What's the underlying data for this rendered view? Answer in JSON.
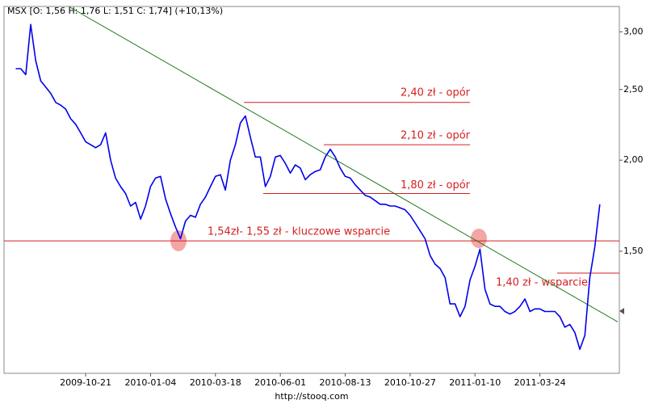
{
  "chart_data": {
    "type": "line",
    "title": "MSX [O: 1,56  H: 1,76  L: 1,51  C: 1,74] (+10,13%)",
    "footer": "http://stooq.com",
    "log_scale": true,
    "categories": [
      null,
      null,
      null,
      null,
      null,
      null,
      null,
      null,
      null,
      null,
      null,
      null,
      null,
      null,
      "2009-10-21",
      null,
      null,
      null,
      null,
      null,
      null,
      null,
      null,
      null,
      null,
      null,
      null,
      "2010-01-04",
      null,
      null,
      null,
      null,
      null,
      null,
      null,
      null,
      null,
      null,
      null,
      null,
      "2010-03-18",
      null,
      null,
      null,
      null,
      null,
      null,
      null,
      null,
      null,
      null,
      null,
      null,
      "2010-06-01",
      null,
      null,
      null,
      null,
      null,
      null,
      null,
      null,
      null,
      null,
      null,
      null,
      "2010-08-13",
      null,
      null,
      null,
      null,
      null,
      null,
      null,
      null,
      null,
      null,
      null,
      null,
      "2010-10-27",
      null,
      null,
      null,
      null,
      null,
      null,
      null,
      null,
      null,
      null,
      null,
      null,
      "2011-01-10",
      null,
      null,
      null,
      null,
      null,
      null,
      null,
      null,
      null,
      null,
      null,
      null,
      "2011-03-24",
      null,
      null,
      null,
      null,
      null,
      null,
      null,
      null,
      null,
      null,
      null,
      null
    ],
    "series": [
      {
        "name": "MSX",
        "color": "#0000ee",
        "values": [
          2.67,
          2.67,
          2.62,
          3.07,
          2.74,
          2.57,
          2.52,
          2.47,
          2.4,
          2.38,
          2.35,
          2.28,
          2.24,
          2.18,
          2.12,
          2.1,
          2.08,
          2.1,
          2.18,
          2.0,
          1.89,
          1.84,
          1.8,
          1.73,
          1.75,
          1.66,
          1.73,
          1.84,
          1.89,
          1.9,
          1.77,
          1.69,
          1.62,
          1.56,
          1.65,
          1.68,
          1.67,
          1.74,
          1.78,
          1.84,
          1.9,
          1.91,
          1.82,
          2.0,
          2.1,
          2.25,
          2.3,
          2.15,
          2.02,
          2.02,
          1.84,
          1.9,
          2.02,
          2.03,
          1.98,
          1.92,
          1.97,
          1.95,
          1.88,
          1.91,
          1.93,
          1.94,
          2.02,
          2.07,
          2.02,
          1.95,
          1.9,
          1.89,
          1.85,
          1.82,
          1.79,
          1.78,
          1.76,
          1.74,
          1.74,
          1.73,
          1.73,
          1.72,
          1.71,
          1.68,
          1.64,
          1.6,
          1.56,
          1.48,
          1.44,
          1.42,
          1.38,
          1.27,
          1.27,
          1.22,
          1.26,
          1.37,
          1.43,
          1.51,
          1.33,
          1.27,
          1.26,
          1.26,
          1.24,
          1.23,
          1.24,
          1.26,
          1.29,
          1.24,
          1.25,
          1.25,
          1.24,
          1.24,
          1.24,
          1.22,
          1.18,
          1.19,
          1.16,
          1.1,
          1.15,
          1.38,
          1.52,
          1.74
        ]
      }
    ],
    "ylim": [
      1.02,
      3.25
    ],
    "yticks": [
      {
        "value": 1.5,
        "label": "1,50"
      },
      {
        "value": 2,
        "label": "2,00"
      },
      {
        "value": 2.5,
        "label": "2,50"
      },
      {
        "value": 3,
        "label": "3,00"
      }
    ],
    "trendline": {
      "values": [
        3.25,
        1.2
      ],
      "color": "#1f7a1f"
    },
    "annotation_color": "#d42020",
    "annotations": [
      {
        "text": "2,40 zł - opór",
        "level": 2.4
      },
      {
        "text": "2,10 zł - opór",
        "level": 2.1
      },
      {
        "text": "1,80 zł - opór",
        "level": 1.8
      },
      {
        "text": "1,54zł- 1,55 zł - kluczowe wsparcie",
        "level": 1.55
      },
      {
        "text": "1,40 zł - wsparcie",
        "level": 1.4
      }
    ]
  }
}
